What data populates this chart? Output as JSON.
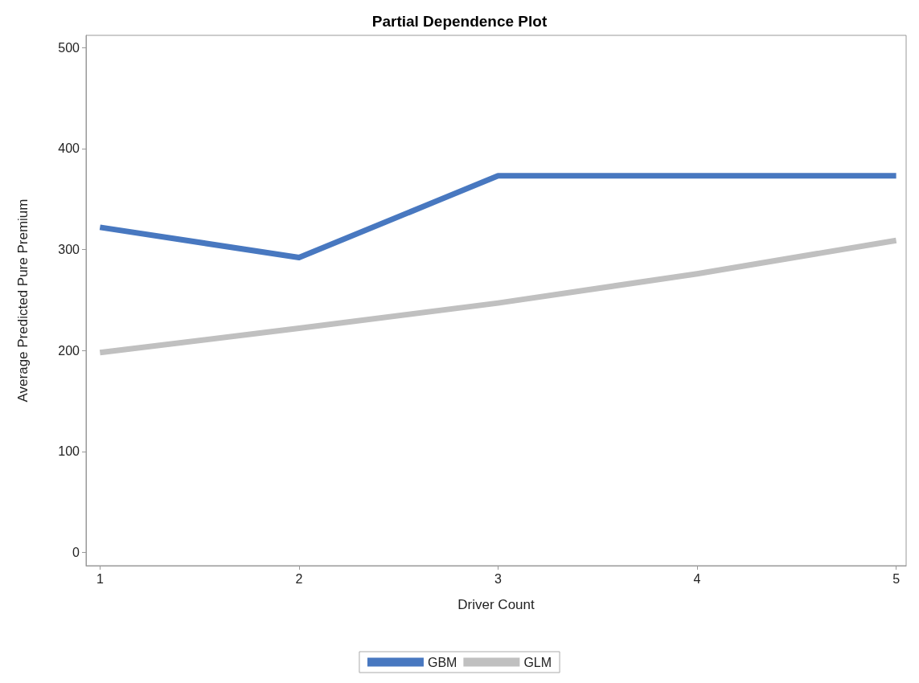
{
  "chart_data": {
    "type": "line",
    "title": "Partial Dependence Plot",
    "xlabel": "Driver Count",
    "ylabel": "Average Predicted Pure Premium",
    "x": [
      1,
      2,
      3,
      4,
      5
    ],
    "series": [
      {
        "name": "GBM",
        "color": "#4878c0",
        "values": [
          322,
          292,
          373,
          373,
          373
        ]
      },
      {
        "name": "GLM",
        "color": "#c0c0c0",
        "values": [
          198,
          222,
          247,
          276,
          309
        ]
      }
    ],
    "xlim": [
      0.93,
      5.05
    ],
    "xticks": [
      1,
      2,
      3,
      4,
      5
    ],
    "ylim": [
      -13,
      512
    ],
    "yticks": [
      0,
      100,
      200,
      300,
      400,
      500
    ],
    "grid": false,
    "legend": "bottom",
    "marker": "none",
    "line_style": "solid"
  }
}
